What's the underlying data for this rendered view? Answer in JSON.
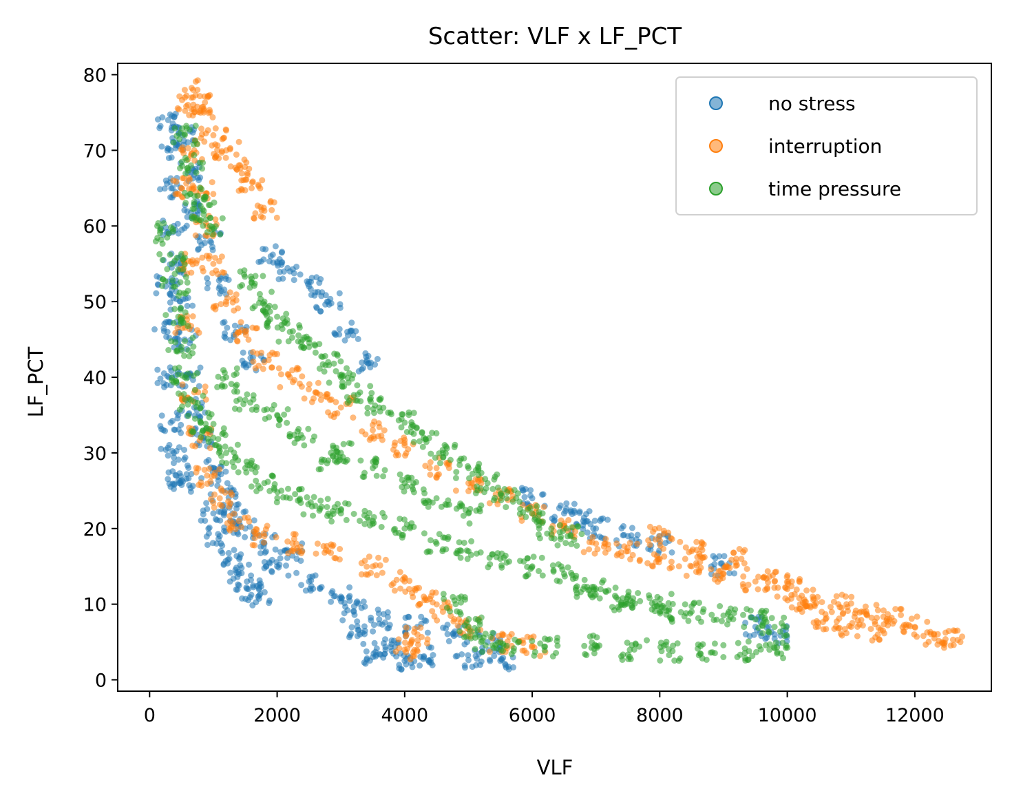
{
  "chart_data": {
    "type": "scatter",
    "title": "Scatter: VLF x LF_PCT",
    "xlabel": "VLF",
    "ylabel": "LF_PCT",
    "xlim": [
      -500,
      13200
    ],
    "ylim": [
      -1.5,
      81.5
    ],
    "xticks": [
      0,
      2000,
      4000,
      6000,
      8000,
      10000,
      12000
    ],
    "yticks": [
      0,
      10,
      20,
      30,
      40,
      50,
      60,
      70,
      80
    ],
    "legend_position": "top-right",
    "series": [
      {
        "name": "no stress",
        "color": "#1f77b4",
        "points": [
          [
            290,
            74
          ],
          [
            330,
            70
          ],
          [
            360,
            65
          ],
          [
            380,
            60
          ],
          [
            420,
            55
          ],
          [
            480,
            50
          ],
          [
            550,
            45
          ],
          [
            600,
            40
          ],
          [
            700,
            36
          ],
          [
            850,
            32
          ],
          [
            1000,
            28
          ],
          [
            1150,
            25
          ],
          [
            1300,
            22
          ],
          [
            1500,
            20
          ],
          [
            1800,
            18
          ],
          [
            2200,
            17
          ],
          [
            250,
            52
          ],
          [
            280,
            46
          ],
          [
            300,
            40
          ],
          [
            330,
            34
          ],
          [
            380,
            30
          ],
          [
            420,
            27
          ],
          [
            480,
            26
          ],
          [
            520,
            72
          ],
          [
            600,
            67
          ],
          [
            750,
            62
          ],
          [
            950,
            58
          ],
          [
            1100,
            52
          ],
          [
            1350,
            46
          ],
          [
            1600,
            42
          ],
          [
            1900,
            56
          ],
          [
            2200,
            54
          ],
          [
            2500,
            52
          ],
          [
            2800,
            50
          ],
          [
            3100,
            46
          ],
          [
            3400,
            42
          ],
          [
            1000,
            22
          ],
          [
            1100,
            19
          ],
          [
            1250,
            16
          ],
          [
            1400,
            14
          ],
          [
            1550,
            12
          ],
          [
            1700,
            11
          ],
          [
            3200,
            9
          ],
          [
            3600,
            8
          ],
          [
            4200,
            7
          ],
          [
            4800,
            6
          ],
          [
            5300,
            5
          ],
          [
            3300,
            6
          ],
          [
            3700,
            4
          ],
          [
            4300,
            3
          ],
          [
            5000,
            2.6
          ],
          [
            5500,
            2.5
          ],
          [
            4000,
            2.5
          ],
          [
            3500,
            3
          ],
          [
            6000,
            24
          ],
          [
            6500,
            22
          ],
          [
            7000,
            20
          ],
          [
            7500,
            19
          ],
          [
            8000,
            18
          ],
          [
            9000,
            15
          ],
          [
            9800,
            6
          ],
          [
            9500,
            7
          ],
          [
            6800,
            21
          ],
          [
            2000,
            15
          ],
          [
            2500,
            13
          ],
          [
            3000,
            11
          ]
        ]
      },
      {
        "name": "interruption",
        "color": "#ff7f0e",
        "points": [
          [
            750,
            78
          ],
          [
            850,
            75
          ],
          [
            1000,
            72
          ],
          [
            1200,
            70
          ],
          [
            1400,
            68
          ],
          [
            1600,
            65
          ],
          [
            1800,
            62
          ],
          [
            600,
            76
          ],
          [
            700,
            70
          ],
          [
            800,
            65
          ],
          [
            900,
            60
          ],
          [
            1000,
            55
          ],
          [
            1200,
            50
          ],
          [
            1500,
            46
          ],
          [
            1800,
            42
          ],
          [
            2200,
            40
          ],
          [
            2600,
            38
          ],
          [
            3000,
            36
          ],
          [
            3500,
            33
          ],
          [
            4000,
            31
          ],
          [
            4500,
            28
          ],
          [
            5000,
            26
          ],
          [
            5500,
            24
          ],
          [
            6000,
            22
          ],
          [
            6500,
            20
          ],
          [
            7000,
            18
          ],
          [
            7500,
            17
          ],
          [
            8000,
            16
          ],
          [
            8500,
            15
          ],
          [
            9000,
            14
          ],
          [
            9500,
            13
          ],
          [
            10000,
            12
          ],
          [
            10400,
            11
          ],
          [
            10800,
            10
          ],
          [
            11200,
            9
          ],
          [
            11600,
            8
          ],
          [
            12000,
            7
          ],
          [
            12300,
            6
          ],
          [
            12600,
            5.3
          ],
          [
            500,
            65
          ],
          [
            550,
            55
          ],
          [
            600,
            47
          ],
          [
            700,
            38
          ],
          [
            800,
            32
          ],
          [
            900,
            27
          ],
          [
            1100,
            24
          ],
          [
            1400,
            21
          ],
          [
            1800,
            19
          ],
          [
            2300,
            18
          ],
          [
            2800,
            17
          ],
          [
            3500,
            15
          ],
          [
            4000,
            13
          ],
          [
            4300,
            11
          ],
          [
            4600,
            9
          ],
          [
            5000,
            7
          ],
          [
            5500,
            5
          ],
          [
            6000,
            4.5
          ],
          [
            4000,
            4
          ],
          [
            4200,
            6
          ],
          [
            8000,
            19
          ],
          [
            8500,
            17
          ],
          [
            9200,
            16
          ],
          [
            9800,
            13
          ],
          [
            10200,
            10
          ],
          [
            10600,
            8
          ],
          [
            11000,
            7
          ],
          [
            11500,
            6.5
          ]
        ]
      },
      {
        "name": "time pressure",
        "color": "#2ca02c",
        "points": [
          [
            550,
            72
          ],
          [
            650,
            68
          ],
          [
            750,
            64
          ],
          [
            850,
            62
          ],
          [
            950,
            60
          ],
          [
            300,
            59
          ],
          [
            350,
            55
          ],
          [
            400,
            52
          ],
          [
            450,
            48
          ],
          [
            500,
            44
          ],
          [
            550,
            40
          ],
          [
            650,
            37
          ],
          [
            800,
            34
          ],
          [
            1000,
            32
          ],
          [
            1200,
            30
          ],
          [
            1500,
            28
          ],
          [
            1800,
            26
          ],
          [
            2200,
            24
          ],
          [
            2600,
            23
          ],
          [
            3000,
            22
          ],
          [
            3500,
            21
          ],
          [
            4000,
            20
          ],
          [
            4500,
            18
          ],
          [
            5000,
            17
          ],
          [
            5500,
            16
          ],
          [
            6000,
            15
          ],
          [
            6500,
            14
          ],
          [
            7000,
            12
          ],
          [
            7500,
            11
          ],
          [
            8000,
            10
          ],
          [
            8500,
            9
          ],
          [
            9000,
            8.5
          ],
          [
            9500,
            8
          ],
          [
            9800,
            7
          ],
          [
            1600,
            53
          ],
          [
            1800,
            50
          ],
          [
            2000,
            48
          ],
          [
            2200,
            46
          ],
          [
            2500,
            44
          ],
          [
            2800,
            42
          ],
          [
            3000,
            40
          ],
          [
            3300,
            38
          ],
          [
            3600,
            36
          ],
          [
            4000,
            34
          ],
          [
            4300,
            32
          ],
          [
            4600,
            30
          ],
          [
            5000,
            28
          ],
          [
            5300,
            26
          ],
          [
            5600,
            24
          ],
          [
            6000,
            22
          ],
          [
            6300,
            20
          ],
          [
            6600,
            19
          ],
          [
            3000,
            30
          ],
          [
            3500,
            28
          ],
          [
            4000,
            26
          ],
          [
            4500,
            24
          ],
          [
            5000,
            22
          ],
          [
            4800,
            10
          ],
          [
            5000,
            7
          ],
          [
            5200,
            5
          ],
          [
            5600,
            4.5
          ],
          [
            6200,
            4.4
          ],
          [
            7000,
            4.5
          ],
          [
            7600,
            4
          ],
          [
            8200,
            3.8
          ],
          [
            8800,
            3.6
          ],
          [
            9400,
            3.8
          ],
          [
            9800,
            4.2
          ],
          [
            2000,
            35
          ],
          [
            2400,
            32
          ],
          [
            2800,
            29
          ],
          [
            1200,
            40
          ],
          [
            1500,
            37
          ],
          [
            6800,
            12
          ],
          [
            7400,
            10
          ],
          [
            8000,
            9
          ]
        ]
      }
    ]
  }
}
